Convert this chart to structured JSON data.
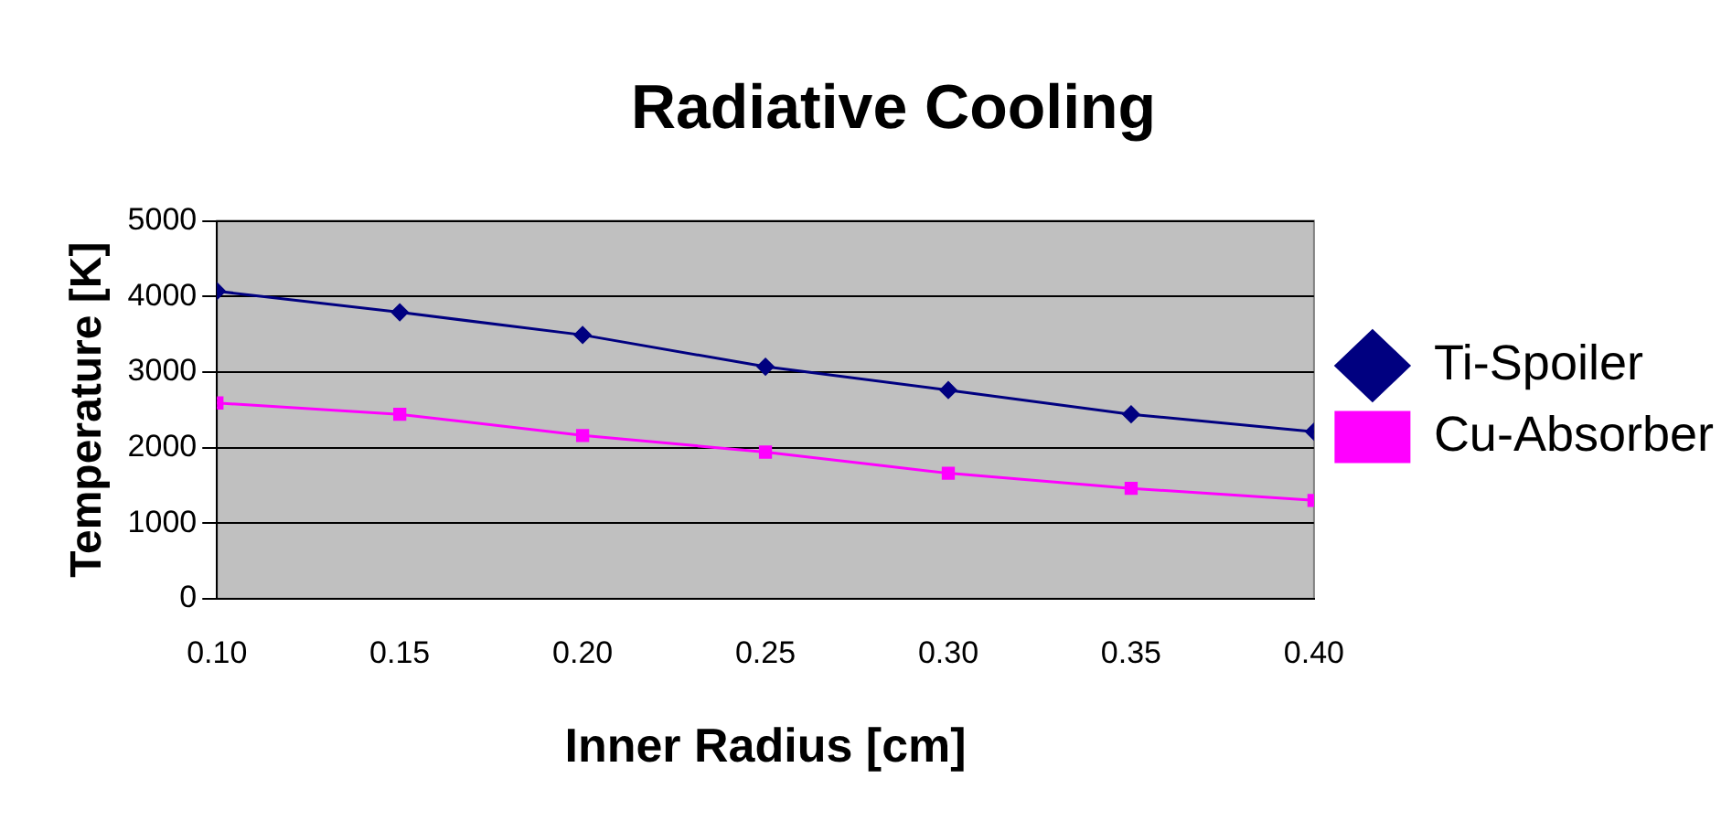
{
  "chart_data": {
    "type": "line",
    "title": "Radiative Cooling",
    "xlabel": "Inner Radius [cm]",
    "ylabel": "Temperature [K]",
    "x": [
      0.1,
      0.15,
      0.2,
      0.25,
      0.3,
      0.35,
      0.4
    ],
    "series": [
      {
        "name": "Ti-Spoiler",
        "color": "#000080",
        "marker": "diamond",
        "values": [
          4070,
          3790,
          3490,
          3070,
          2760,
          2440,
          2210
        ]
      },
      {
        "name": "Cu-Absorber",
        "color": "#ff00ff",
        "marker": "square",
        "values": [
          2590,
          2440,
          2160,
          1940,
          1660,
          1460,
          1300
        ]
      }
    ],
    "xlim": [
      0.1,
      0.4
    ],
    "xticks": [
      {
        "value": 0.1,
        "label": "0.10"
      },
      {
        "value": 0.15,
        "label": "0.15"
      },
      {
        "value": 0.2,
        "label": "0.20"
      },
      {
        "value": 0.25,
        "label": "0.25"
      },
      {
        "value": 0.3,
        "label": "0.30"
      },
      {
        "value": 0.35,
        "label": "0.35"
      },
      {
        "value": 0.4,
        "label": "0.40"
      }
    ],
    "ylim": [
      0,
      5000
    ],
    "yticks": [
      0,
      1000,
      2000,
      3000,
      4000,
      5000
    ],
    "grid": "y",
    "legend": "right",
    "line_style": "solid"
  }
}
